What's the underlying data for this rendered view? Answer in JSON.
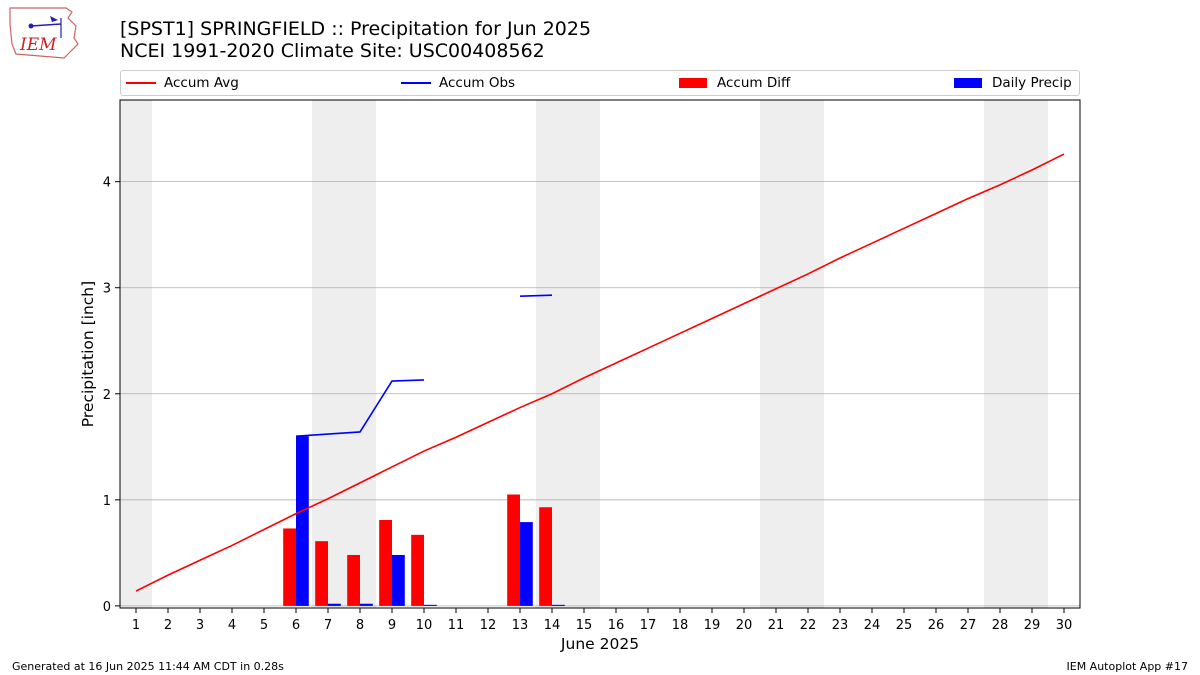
{
  "logo": {
    "text": "IEM"
  },
  "title_line1": "[SPST1] SPRINGFIELD :: Precipitation for Jun 2025",
  "title_line2": "NCEI 1991-2020 Climate Site: USC00408562",
  "footer_left": "Generated at 16 Jun 2025 11:44 AM CDT in 0.28s",
  "footer_right": "IEM Autoplot App #17",
  "colors": {
    "avg": "#ff0000",
    "obs": "#0000ff",
    "diff": "#ff0000",
    "daily": "#0000ff",
    "weekend": "#eeeeee",
    "grid": "#b0b0b0"
  },
  "chart_data": {
    "type": "bar",
    "xlabel": "June 2025",
    "ylabel": "Precipitation [inch]",
    "xlim": [
      0.5,
      30.5
    ],
    "ylim": [
      -0.02,
      4.77
    ],
    "yticks": [
      0,
      1,
      2,
      3,
      4
    ],
    "days": [
      1,
      2,
      3,
      4,
      5,
      6,
      7,
      8,
      9,
      10,
      11,
      12,
      13,
      14,
      15,
      16,
      17,
      18,
      19,
      20,
      21,
      22,
      23,
      24,
      25,
      26,
      27,
      28,
      29,
      30
    ],
    "weekend_days": [
      1,
      7,
      8,
      14,
      15,
      21,
      22,
      28,
      29
    ],
    "legend": [
      {
        "name": "Accum Avg",
        "kind": "line",
        "color": "#ff0000"
      },
      {
        "name": "Accum Obs",
        "kind": "line",
        "color": "#0000ff"
      },
      {
        "name": "Accum Diff",
        "kind": "patch",
        "color": "#ff0000"
      },
      {
        "name": "Daily Precip",
        "kind": "patch",
        "color": "#0000ff"
      }
    ],
    "series": [
      {
        "name": "Accum Avg",
        "type": "line",
        "x": [
          1,
          2,
          3,
          4,
          5,
          6,
          7,
          8,
          9,
          10,
          11,
          12,
          13,
          14,
          15,
          16,
          17,
          18,
          19,
          20,
          21,
          22,
          23,
          24,
          25,
          26,
          27,
          28,
          29,
          30
        ],
        "values": [
          0.14,
          0.29,
          0.43,
          0.57,
          0.72,
          0.87,
          1.01,
          1.16,
          1.31,
          1.46,
          1.59,
          1.73,
          1.87,
          2.0,
          2.15,
          2.29,
          2.43,
          2.57,
          2.71,
          2.85,
          2.99,
          3.13,
          3.28,
          3.42,
          3.56,
          3.7,
          3.84,
          3.97,
          4.11,
          4.26
        ]
      },
      {
        "name": "Accum Obs",
        "type": "line",
        "segments": [
          {
            "x": [
              6,
              7,
              8,
              9,
              10
            ],
            "values": [
              1.6,
              1.62,
              1.64,
              2.12,
              2.13
            ]
          },
          {
            "x": [
              13,
              14
            ],
            "values": [
              2.92,
              2.93
            ]
          }
        ]
      },
      {
        "name": "Accum Diff",
        "type": "bar",
        "offset": -0.2,
        "x": [
          6,
          7,
          8,
          9,
          10,
          13,
          14
        ],
        "values": [
          0.73,
          0.61,
          0.48,
          0.81,
          0.67,
          1.05,
          0.93
        ]
      },
      {
        "name": "Daily Precip",
        "type": "bar",
        "offset": 0.2,
        "x": [
          6,
          7,
          8,
          9,
          10,
          13,
          14
        ],
        "values": [
          1.6,
          0.02,
          0.02,
          0.48,
          0.01,
          0.79,
          0.01
        ]
      }
    ]
  }
}
